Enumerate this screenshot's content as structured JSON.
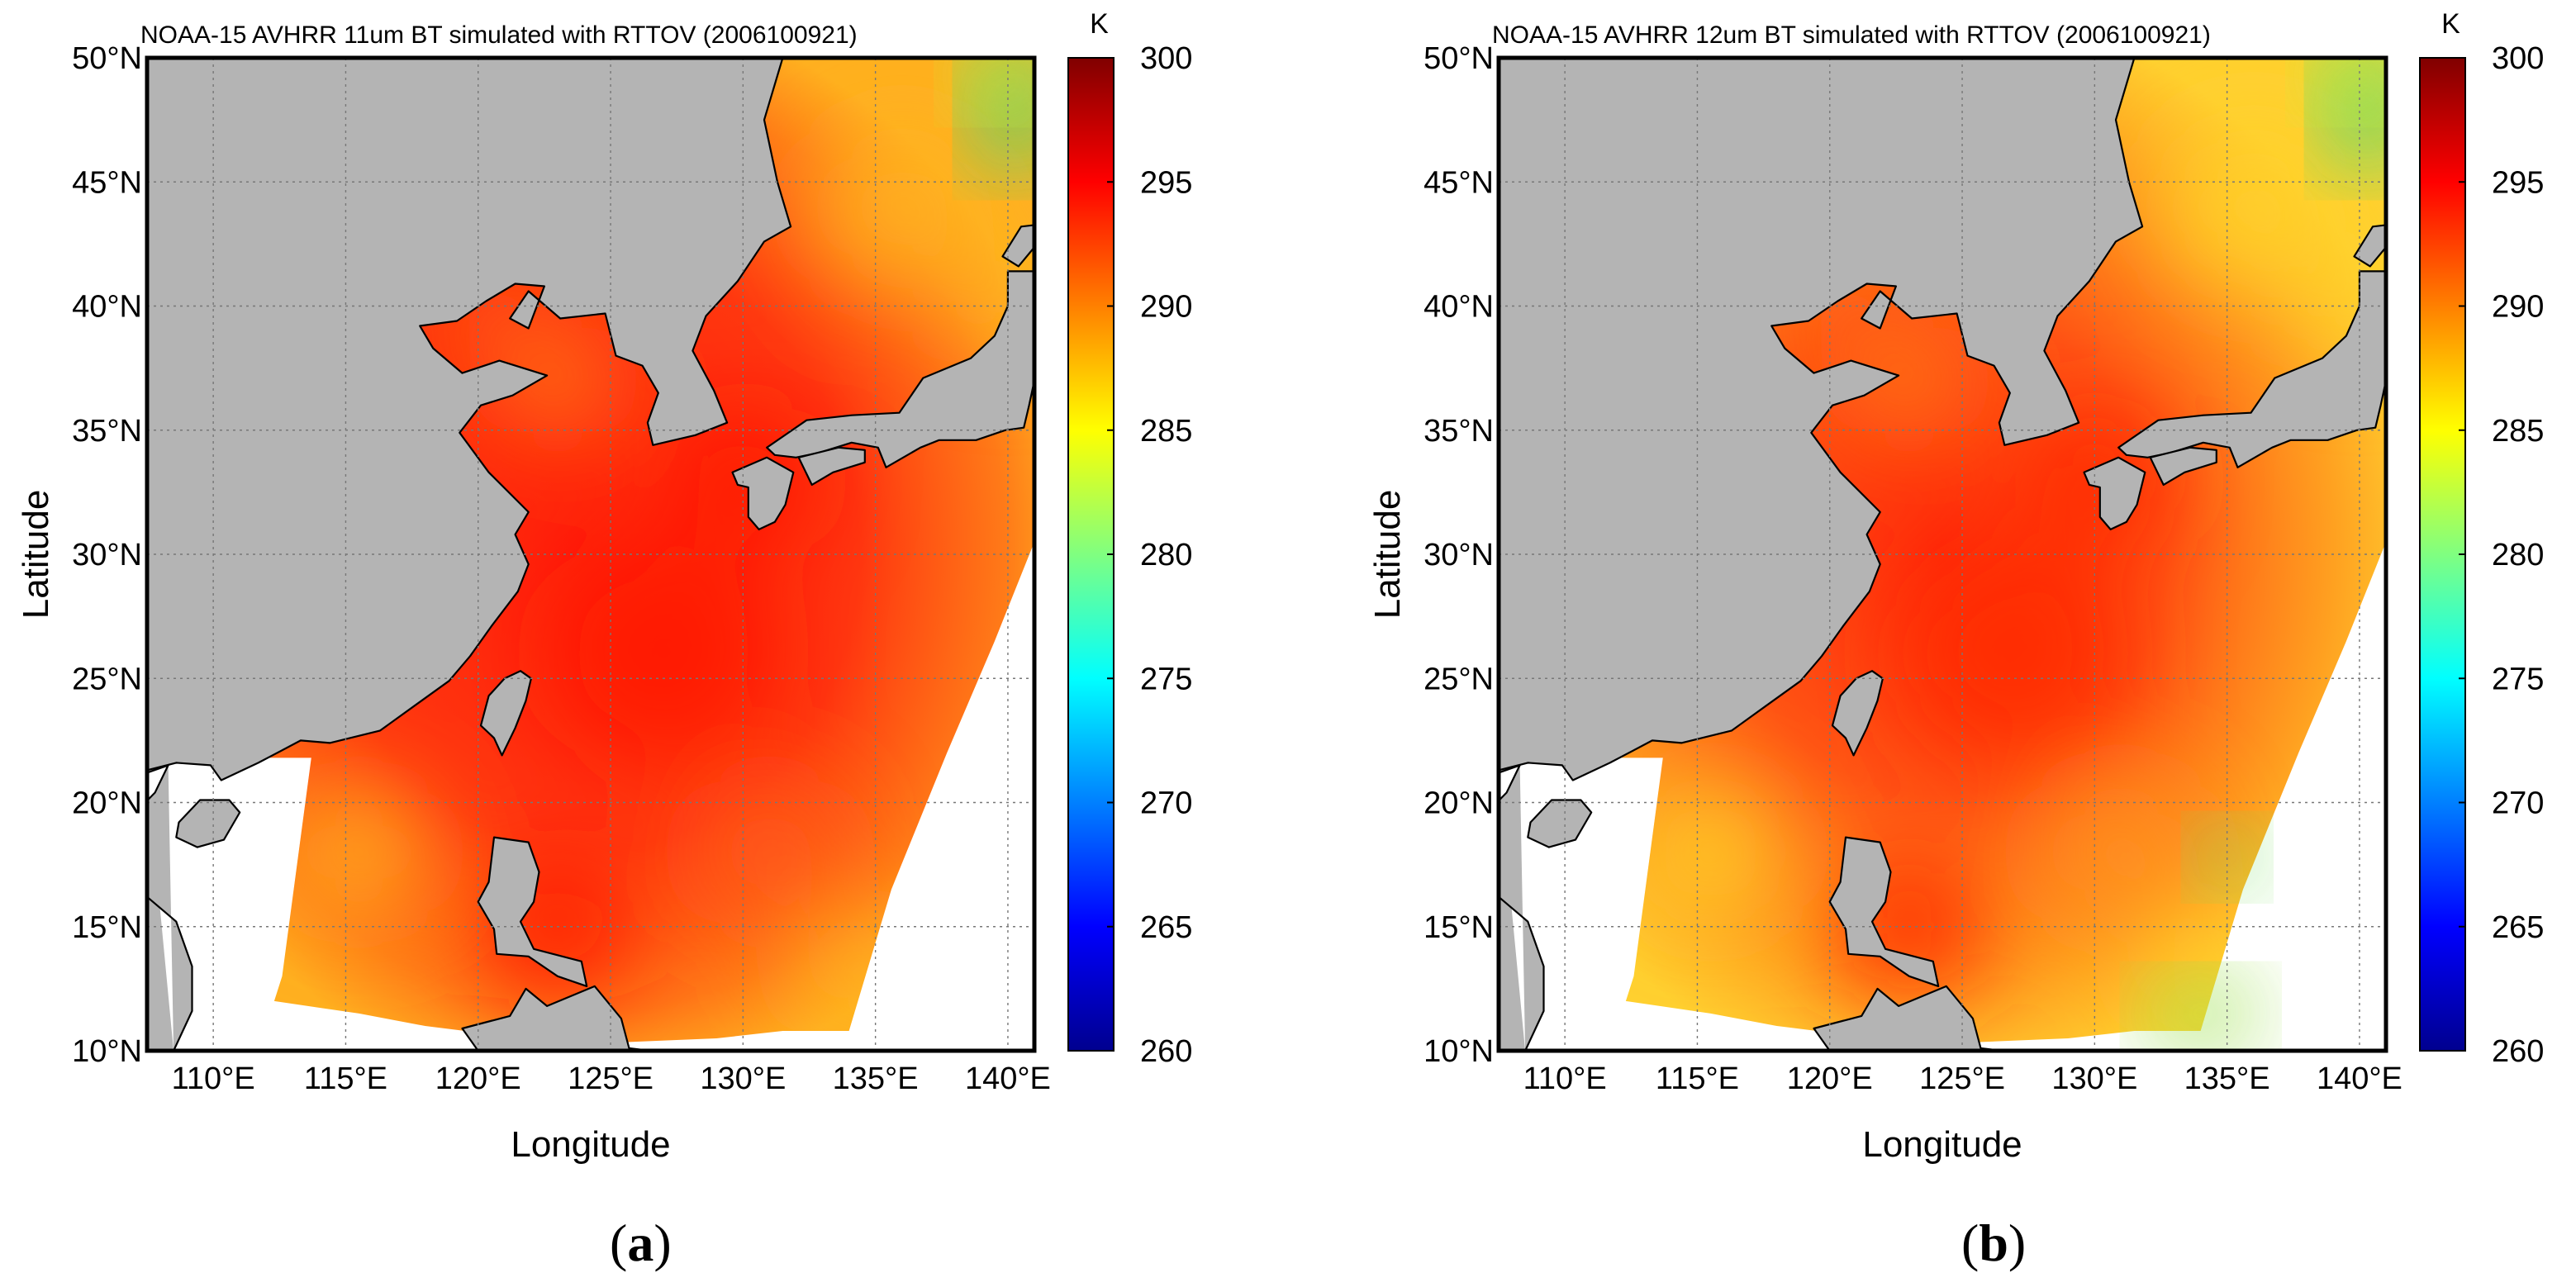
{
  "panels": [
    {
      "id": "a",
      "title": "NOAA-15 AVHRR 11um BT simulated with RTTOV (2006100921)",
      "label": "a",
      "variant": 0
    },
    {
      "id": "b",
      "title": "NOAA-15 AVHRR 12um BT simulated with RTTOV (2006100921)",
      "label": "b",
      "variant": 1
    }
  ],
  "axes": {
    "xlabel": "Longitude",
    "ylabel": "Latitude",
    "lon_ticks": [
      "110°E",
      "115°E",
      "120°E",
      "125°E",
      "130°E",
      "135°E",
      "140°E"
    ],
    "lat_ticks": [
      "50°N",
      "45°N",
      "40°N",
      "35°N",
      "30°N",
      "25°N",
      "20°N",
      "15°N",
      "10°N"
    ],
    "lon_range": [
      107.5,
      141
    ],
    "lat_range": [
      10,
      50
    ]
  },
  "colorbar": {
    "unit": "K",
    "min": 260,
    "max": 300,
    "ticks": [
      "300",
      "295",
      "290",
      "285",
      "280",
      "275",
      "270",
      "265",
      "260"
    ],
    "colormap": "jet"
  },
  "colors": {
    "land": "#b4b4b4",
    "no_data": "#ffffff",
    "grid": "#777777",
    "frame": "#000000"
  }
}
